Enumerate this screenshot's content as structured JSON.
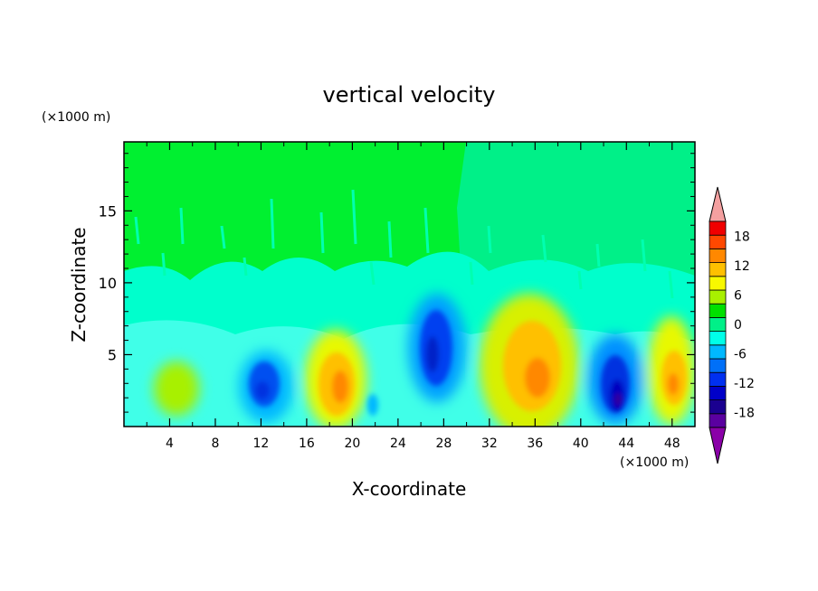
{
  "chart_data": {
    "type": "heatmap",
    "title": "vertical velocity",
    "xlabel": "X-coordinate",
    "ylabel": "Z-coordinate",
    "x_unit": "(×1000 m)",
    "y_unit": "(×1000 m)",
    "xlim": [
      0,
      50
    ],
    "ylim": [
      0,
      19.8
    ],
    "x_ticks": [
      4,
      8,
      12,
      16,
      20,
      24,
      28,
      32,
      36,
      40,
      44,
      48
    ],
    "y_ticks": [
      5,
      10,
      15
    ],
    "colorbar": {
      "levels": [
        -21,
        -18,
        -15,
        -12,
        -9,
        -6,
        -3,
        0,
        3,
        6,
        9,
        12,
        15,
        18,
        21
      ],
      "labels": [
        -18,
        -12,
        -6,
        0,
        6,
        12,
        18
      ],
      "colors": [
        "#5a00a0",
        "#1a0090",
        "#0000c8",
        "#0030f0",
        "#0070f8",
        "#00b8ff",
        "#00ffe8",
        "#00f088",
        "#00e000",
        "#a8f000",
        "#f8f800",
        "#ffc000",
        "#ff8800",
        "#ff4800",
        "#f00000"
      ],
      "under_color": "#8a00a8",
      "over_color": "#f4a0a0"
    },
    "cells": [
      {
        "x": 13,
        "z": 3.5,
        "w": -13
      },
      {
        "x": 19,
        "z": 3.3,
        "w": 12
      },
      {
        "x": 27,
        "z": 5.5,
        "w": -13
      },
      {
        "x": 35.5,
        "z": 4,
        "w": 12
      },
      {
        "x": 43,
        "z": 2.5,
        "w": -18
      },
      {
        "x": 48,
        "z": 3.3,
        "w": 12
      }
    ]
  }
}
